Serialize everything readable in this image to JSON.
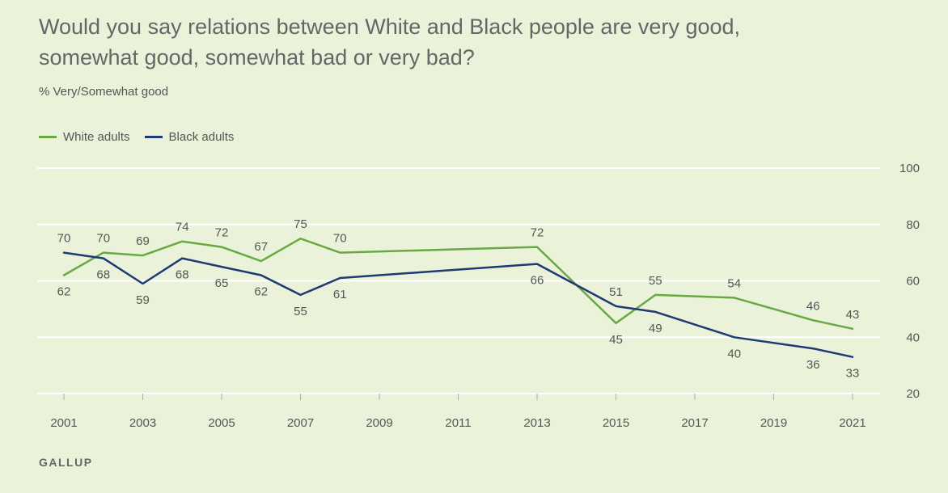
{
  "title": "Would you say relations between White and Black people are very good, somewhat good, somewhat bad or very bad?",
  "subtitle": "% Very/Somewhat good",
  "source": "GALLUP",
  "chart_data": {
    "type": "line",
    "title": "Would you say relations between White and Black people are very good, somewhat good, somewhat bad or very bad?",
    "ylabel": "% Very/Somewhat good",
    "xlabel": "",
    "ylim": [
      20,
      100
    ],
    "yticks": [
      20,
      40,
      60,
      80,
      100
    ],
    "xlim": [
      2001,
      2021
    ],
    "xticks": [
      2001,
      2003,
      2005,
      2007,
      2009,
      2011,
      2013,
      2015,
      2017,
      2019,
      2021
    ],
    "grid": true,
    "legend": "top-left",
    "series": [
      {
        "name": "White adults",
        "color": "#6aa843",
        "points": [
          {
            "x": 2001,
            "y": 62,
            "label": "62",
            "label_pos": "below"
          },
          {
            "x": 2002,
            "y": 70,
            "label": "70",
            "label_pos": "above"
          },
          {
            "x": 2003,
            "y": 69,
            "label": "69",
            "label_pos": "above"
          },
          {
            "x": 2004,
            "y": 74,
            "label": "74",
            "label_pos": "above"
          },
          {
            "x": 2005,
            "y": 72,
            "label": "72",
            "label_pos": "above"
          },
          {
            "x": 2006,
            "y": 67,
            "label": "67",
            "label_pos": "above"
          },
          {
            "x": 2007,
            "y": 75,
            "label": "75",
            "label_pos": "above"
          },
          {
            "x": 2008,
            "y": 70,
            "label": "70",
            "label_pos": "above"
          },
          {
            "x": 2013,
            "y": 72,
            "label": "72",
            "label_pos": "above"
          },
          {
            "x": 2015,
            "y": 45,
            "label": "45",
            "label_pos": "below"
          },
          {
            "x": 2016,
            "y": 55,
            "label": "55",
            "label_pos": "above"
          },
          {
            "x": 2018,
            "y": 54,
            "label": "54",
            "label_pos": "above"
          },
          {
            "x": 2020,
            "y": 46,
            "label": "46",
            "label_pos": "above"
          },
          {
            "x": 2021,
            "y": 43,
            "label": "43",
            "label_pos": "above"
          }
        ]
      },
      {
        "name": "Black adults",
        "color": "#1f3a73",
        "points": [
          {
            "x": 2001,
            "y": 70,
            "label": "70",
            "label_pos": "above"
          },
          {
            "x": 2002,
            "y": 68,
            "label": "68",
            "label_pos": "below"
          },
          {
            "x": 2003,
            "y": 59,
            "label": "59",
            "label_pos": "below"
          },
          {
            "x": 2004,
            "y": 68,
            "label": "68",
            "label_pos": "below"
          },
          {
            "x": 2005,
            "y": 65,
            "label": "65",
            "label_pos": "below"
          },
          {
            "x": 2006,
            "y": 62,
            "label": "62",
            "label_pos": "below"
          },
          {
            "x": 2007,
            "y": 55,
            "label": "55",
            "label_pos": "below"
          },
          {
            "x": 2008,
            "y": 61,
            "label": "61",
            "label_pos": "below"
          },
          {
            "x": 2013,
            "y": 66,
            "label": "66",
            "label_pos": "below"
          },
          {
            "x": 2015,
            "y": 51,
            "label": "51",
            "label_pos": "above"
          },
          {
            "x": 2016,
            "y": 49,
            "label": "49",
            "label_pos": "below"
          },
          {
            "x": 2018,
            "y": 40,
            "label": "40",
            "label_pos": "below"
          },
          {
            "x": 2020,
            "y": 36,
            "label": "36",
            "label_pos": "below"
          },
          {
            "x": 2021,
            "y": 33,
            "label": "33",
            "label_pos": "below"
          }
        ]
      }
    ]
  }
}
